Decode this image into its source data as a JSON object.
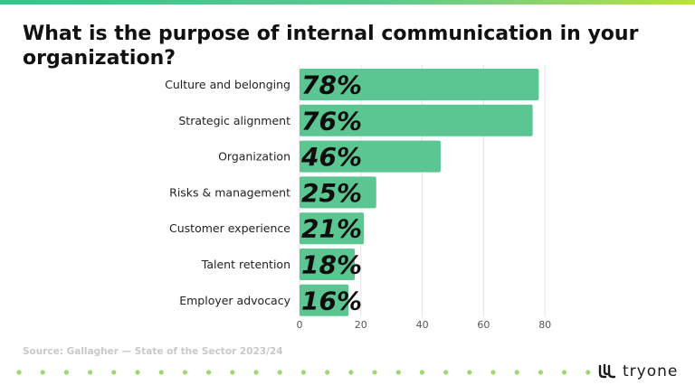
{
  "title": "What is the purpose of internal communication in your organization?",
  "source": "Source: Gallagher — State of the Sector 2023/24",
  "logo": {
    "text": "tryone",
    "icon": "tryone-logo-icon"
  },
  "colors": {
    "bar": "#5bc691",
    "stripe_start": "#3fc08a",
    "stripe_end": "#b8e04a",
    "dots": "#9fd873",
    "grid": "#e3e3e3",
    "label": "#222222",
    "source": "#c9c9c9"
  },
  "chart_data": {
    "type": "bar",
    "orientation": "horizontal",
    "categories": [
      "Culture and belonging",
      "Strategic alignment",
      "Organization",
      "Risks & management",
      "Customer experience",
      "Talent retention",
      "Employer advocacy"
    ],
    "values": [
      78,
      76,
      46,
      25,
      21,
      18,
      16
    ],
    "data_labels": [
      "78%",
      "76%",
      "46%",
      "25%",
      "21%",
      "18%",
      "16%"
    ],
    "xticks": [
      0,
      20,
      40,
      60,
      80
    ],
    "tick_labels": [
      "0",
      "20",
      "40",
      "60",
      "80"
    ],
    "xlim": [
      0,
      85
    ],
    "grid": true
  }
}
